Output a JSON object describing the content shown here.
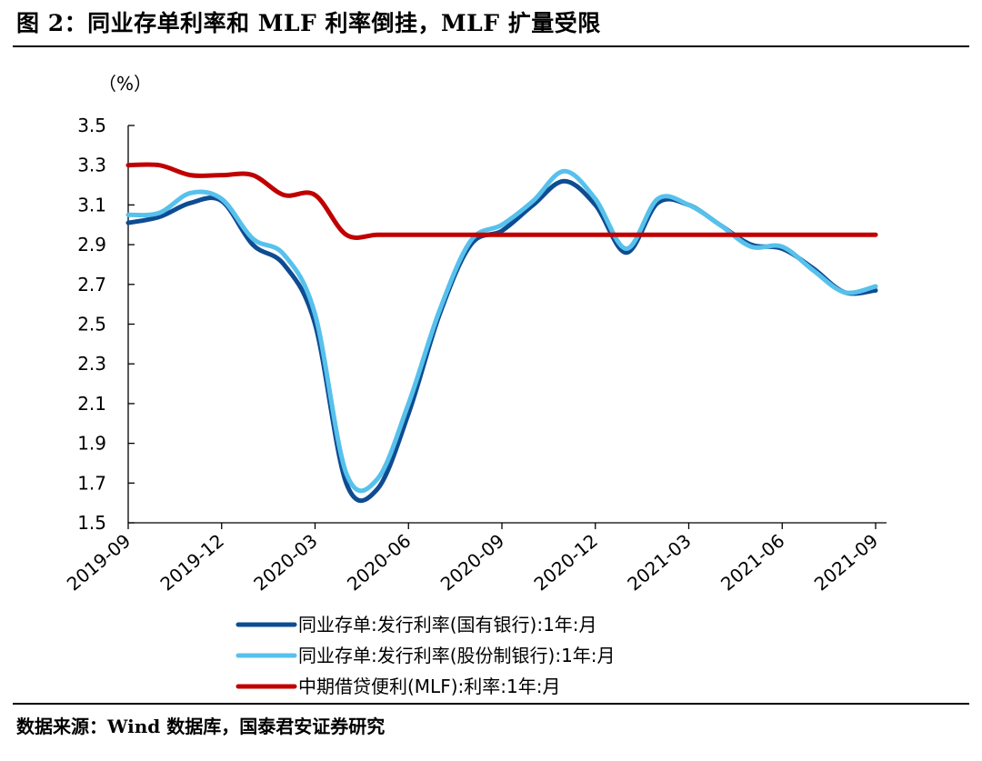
{
  "title": "图 2：同业存单利率和 MLF 利率倒挂，MLF 扩量受限",
  "source": "数据来源：Wind 数据库，国泰君安证券研究",
  "chart_data": {
    "type": "line",
    "ylabel": "（%）",
    "ylim": [
      1.5,
      3.5
    ],
    "yticks": [
      "3.5",
      "3.3",
      "3.1",
      "2.9",
      "2.7",
      "2.5",
      "2.3",
      "2.1",
      "1.9",
      "1.7",
      "1.5"
    ],
    "xticks": [
      "2019-09",
      "2019-12",
      "2020-03",
      "2020-06",
      "2020-09",
      "2020-12",
      "2021-03",
      "2021-06",
      "2021-09"
    ],
    "xlim": [
      "2019-09",
      "2021-09"
    ],
    "grid": false,
    "legend_position": "bottom",
    "series": [
      {
        "name": "同业存单:发行利率(国有银行):1年:月",
        "color": "#0e4c92",
        "points": [
          [
            "2019-09",
            3.01
          ],
          [
            "2019-10",
            3.04
          ],
          [
            "2019-11",
            3.11
          ],
          [
            "2019-12",
            3.12
          ],
          [
            "2020-01",
            2.9
          ],
          [
            "2020-02",
            2.8
          ],
          [
            "2020-03",
            2.5
          ],
          [
            "2020-04",
            1.7
          ],
          [
            "2020-05",
            1.67
          ],
          [
            "2020-06",
            2.05
          ],
          [
            "2020-07",
            2.55
          ],
          [
            "2020-08",
            2.9
          ],
          [
            "2020-09",
            2.97
          ],
          [
            "2020-10",
            3.1
          ],
          [
            "2020-11",
            3.22
          ],
          [
            "2020-12",
            3.1
          ],
          [
            "2021-01",
            2.86
          ],
          [
            "2021-02",
            3.11
          ],
          [
            "2021-03",
            3.1
          ],
          [
            "2021-04",
            3.0
          ],
          [
            "2021-05",
            2.9
          ],
          [
            "2021-06",
            2.88
          ],
          [
            "2021-07",
            2.78
          ],
          [
            "2021-08",
            2.66
          ],
          [
            "2021-09",
            2.67
          ]
        ]
      },
      {
        "name": "同业存单:发行利率(股份制银行):1年:月",
        "color": "#57c1ec",
        "points": [
          [
            "2019-09",
            3.05
          ],
          [
            "2019-10",
            3.06
          ],
          [
            "2019-11",
            3.16
          ],
          [
            "2019-12",
            3.13
          ],
          [
            "2020-01",
            2.93
          ],
          [
            "2020-02",
            2.85
          ],
          [
            "2020-03",
            2.55
          ],
          [
            "2020-04",
            1.75
          ],
          [
            "2020-05",
            1.72
          ],
          [
            "2020-06",
            2.1
          ],
          [
            "2020-07",
            2.57
          ],
          [
            "2020-08",
            2.92
          ],
          [
            "2020-09",
            3.0
          ],
          [
            "2020-10",
            3.12
          ],
          [
            "2020-11",
            3.27
          ],
          [
            "2020-12",
            3.13
          ],
          [
            "2021-01",
            2.88
          ],
          [
            "2021-02",
            3.13
          ],
          [
            "2021-03",
            3.1
          ],
          [
            "2021-04",
            3.0
          ],
          [
            "2021-05",
            2.89
          ],
          [
            "2021-06",
            2.89
          ],
          [
            "2021-07",
            2.77
          ],
          [
            "2021-08",
            2.66
          ],
          [
            "2021-09",
            2.69
          ]
        ]
      },
      {
        "name": "中期借贷便利(MLF):利率:1年:月",
        "color": "#c00000",
        "points": [
          [
            "2019-09",
            3.3
          ],
          [
            "2019-10",
            3.3
          ],
          [
            "2019-11",
            3.25
          ],
          [
            "2019-12",
            3.25
          ],
          [
            "2020-01",
            3.25
          ],
          [
            "2020-02",
            3.15
          ],
          [
            "2020-03",
            3.15
          ],
          [
            "2020-04",
            2.95
          ],
          [
            "2020-05",
            2.95
          ],
          [
            "2020-06",
            2.95
          ],
          [
            "2020-07",
            2.95
          ],
          [
            "2020-08",
            2.95
          ],
          [
            "2020-09",
            2.95
          ],
          [
            "2020-10",
            2.95
          ],
          [
            "2020-11",
            2.95
          ],
          [
            "2020-12",
            2.95
          ],
          [
            "2021-01",
            2.95
          ],
          [
            "2021-02",
            2.95
          ],
          [
            "2021-03",
            2.95
          ],
          [
            "2021-04",
            2.95
          ],
          [
            "2021-05",
            2.95
          ],
          [
            "2021-06",
            2.95
          ],
          [
            "2021-07",
            2.95
          ],
          [
            "2021-08",
            2.95
          ],
          [
            "2021-09",
            2.95
          ]
        ]
      }
    ]
  }
}
